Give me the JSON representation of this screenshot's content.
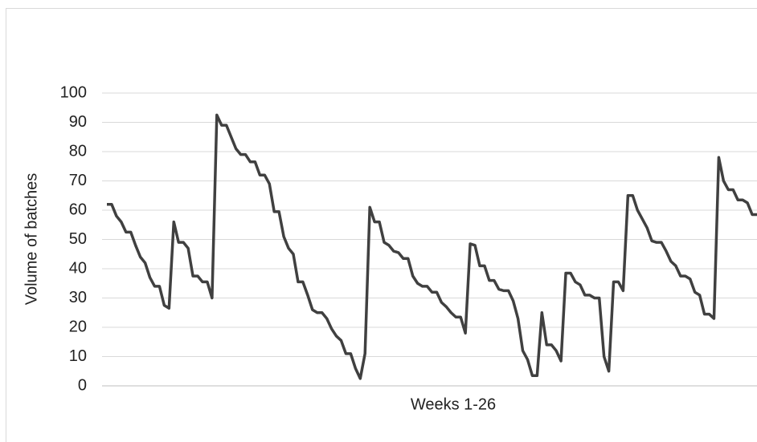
{
  "chart_data": {
    "type": "line",
    "y_label": "Volume of batches",
    "x_label": "Weeks 1-26",
    "color": "#404040",
    "ylim": [
      0,
      100
    ],
    "yticks": [
      0,
      10,
      20,
      30,
      40,
      50,
      60,
      70,
      80,
      90,
      100
    ],
    "grid": true,
    "values": [
      62,
      62,
      58,
      56,
      52.5,
      52.5,
      48,
      44,
      42,
      37,
      34,
      34,
      27.5,
      26.5,
      56,
      49,
      49,
      47,
      37.5,
      37.5,
      35.5,
      35.5,
      30,
      92.5,
      89,
      89,
      85,
      81,
      79,
      79,
      76.5,
      76.5,
      72,
      72,
      69,
      59.5,
      59.5,
      51,
      47,
      45,
      35.5,
      35.5,
      31,
      26,
      25,
      25,
      23,
      19.5,
      17,
      15.5,
      11,
      11,
      6,
      2.5,
      11,
      61,
      56,
      56,
      49,
      48,
      46,
      45.5,
      43.5,
      43.5,
      37.5,
      35,
      34,
      34,
      32,
      32,
      28.5,
      27,
      25,
      23.5,
      23.5,
      18,
      48.5,
      48,
      41,
      41,
      36,
      36,
      33,
      32.5,
      32.5,
      29,
      23,
      12,
      9,
      3.5,
      3.5,
      25,
      14,
      14,
      12,
      8.5,
      38.5,
      38.5,
      35.5,
      34.5,
      31,
      31,
      30,
      30,
      10,
      5,
      35.5,
      35.5,
      32.5,
      65,
      65,
      60,
      57,
      54,
      49.5,
      49,
      49,
      46,
      42.5,
      41,
      37.5,
      37.5,
      36.5,
      32,
      31,
      24.5,
      24.5,
      23,
      78,
      70,
      67,
      67,
      63.5,
      63.5,
      62.5,
      58.5,
      58.5
    ]
  }
}
